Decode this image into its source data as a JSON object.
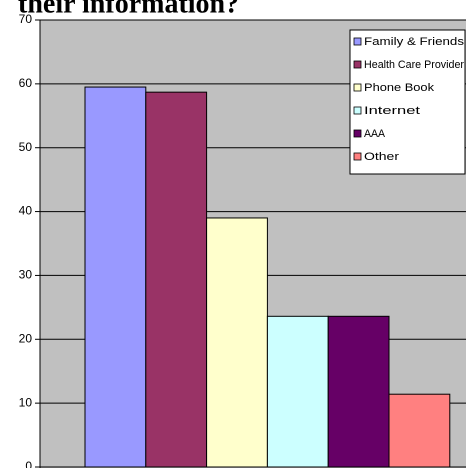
{
  "chart_data": {
    "type": "bar",
    "title": "their information?",
    "series": [
      {
        "name": "Family & Friends",
        "color": "#9999ff",
        "values": [
          59.5
        ]
      },
      {
        "name": "Health Care Provider",
        "color": "#993366",
        "values": [
          58.7
        ]
      },
      {
        "name": "Phone Book",
        "color": "#ffffcc",
        "values": [
          39.0
        ]
      },
      {
        "name": "Internet",
        "color": "#ccffff",
        "values": [
          23.6
        ]
      },
      {
        "name": "AAA",
        "color": "#660066",
        "values": [
          23.6
        ]
      },
      {
        "name": "Other",
        "color": "#ff8080",
        "values": [
          11.4
        ]
      }
    ],
    "ylim": [
      0,
      70
    ],
    "yticks": [
      0,
      10,
      20,
      30,
      40,
      50,
      60,
      70
    ],
    "grid": true,
    "legend": "top-right"
  }
}
